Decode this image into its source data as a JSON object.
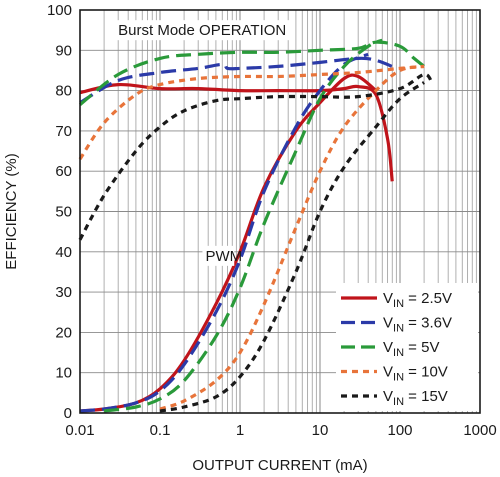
{
  "chart_data": {
    "type": "line",
    "title": "",
    "xlabel": "OUTPUT CURRENT (mA)",
    "ylabel": "EFFICIENCY (%)",
    "x_scale": "log",
    "xlim": [
      0.01,
      1000
    ],
    "ylim": [
      0,
      100
    ],
    "x_ticks": [
      0.01,
      0.1,
      1,
      10,
      100,
      1000
    ],
    "x_tick_labels": [
      "0.01",
      "0.1",
      "1",
      "10",
      "100",
      "1000"
    ],
    "y_ticks": [
      0,
      10,
      20,
      30,
      40,
      50,
      60,
      70,
      80,
      90,
      100
    ],
    "y_tick_labels": [
      "0",
      "10",
      "20",
      "30",
      "40",
      "50",
      "60",
      "70",
      "80",
      "90",
      "100"
    ],
    "grid": true,
    "legend_position": "bottom-right",
    "annotations": [
      {
        "text": "Burst Mode OPERATION",
        "x": 0.03,
        "y": 94
      },
      {
        "text": "PWM",
        "x": 0.37,
        "y": 38
      }
    ],
    "series": [
      {
        "name": "VIN = 2.5V",
        "name_main": "V",
        "name_sub": "IN",
        "name_rest": " = 2.5V",
        "color": "#c0141b",
        "dash": "solid",
        "segments": [
          {
            "mode": "Burst",
            "x": [
              0.01,
              0.03,
              0.1,
              0.3,
              1,
              3,
              10,
              20,
              30,
              50,
              70,
              80
            ],
            "y": [
              79.5,
              81.5,
              80.5,
              80.5,
              80.0,
              80.0,
              80.0,
              80.5,
              81.0,
              79.0,
              68.0,
              57.5
            ]
          },
          {
            "mode": "PWM",
            "x": [
              0.01,
              0.02,
              0.05,
              0.1,
              0.2,
              0.5,
              1,
              2,
              5,
              10,
              20,
              30,
              50
            ],
            "y": [
              0.5,
              1.0,
              2.5,
              6.0,
              13.0,
              27.0,
              40.0,
              56.0,
              70.0,
              77.0,
              83.0,
              83.5,
              80.0
            ]
          }
        ]
      },
      {
        "name": "VIN = 3.6V",
        "name_main": "V",
        "name_sub": "IN",
        "name_rest": " = 3.6V",
        "color": "#2b3aa8",
        "dash": "long",
        "segments": [
          {
            "mode": "Burst",
            "x": [
              0.01,
              0.03,
              0.1,
              0.3,
              0.6,
              0.7,
              1,
              3,
              10,
              30,
              50,
              80
            ],
            "y": [
              77.0,
              82.5,
              84.5,
              85.5,
              86.5,
              85.5,
              85.5,
              86.0,
              87.0,
              88.0,
              87.5,
              86.0
            ]
          },
          {
            "mode": "PWM",
            "x": [
              0.01,
              0.02,
              0.05,
              0.1,
              0.2,
              0.5,
              1,
              2,
              5,
              10,
              20,
              40
            ],
            "y": [
              0.5,
              1.0,
              2.5,
              5.5,
              12.0,
              25.0,
              38.0,
              55.0,
              71.0,
              80.0,
              86.5,
              89.0
            ]
          }
        ]
      },
      {
        "name": "VIN = 5V",
        "name_main": "V",
        "name_sub": "IN",
        "name_rest": " = 5V",
        "color": "#2a9a3a",
        "dash": "long",
        "segments": [
          {
            "mode": "Burst",
            "x": [
              0.01,
              0.03,
              0.1,
              0.3,
              1,
              3,
              10,
              30,
              50,
              100,
              150,
              200
            ],
            "y": [
              76.5,
              84.0,
              88.0,
              89.0,
              89.5,
              89.5,
              90.0,
              90.5,
              92.0,
              91.0,
              88.0,
              86.0
            ]
          },
          {
            "mode": "PWM",
            "x": [
              0.02,
              0.05,
              0.1,
              0.2,
              0.5,
              1,
              2,
              5,
              10,
              20,
              40,
              60
            ],
            "y": [
              0.5,
              1.5,
              3.5,
              8.0,
              19.0,
              31.0,
              47.0,
              65.0,
              78.0,
              86.0,
              91.0,
              92.5
            ]
          }
        ]
      },
      {
        "name": "VIN = 10V",
        "name_main": "V",
        "name_sub": "IN",
        "name_rest": " = 10V",
        "color": "#e8743a",
        "dash": "short",
        "segments": [
          {
            "mode": "Burst",
            "x": [
              0.01,
              0.02,
              0.05,
              0.1,
              0.3,
              1,
              3,
              10,
              30,
              100,
              200
            ],
            "y": [
              63.0,
              72.0,
              79.0,
              81.5,
              83.0,
              83.5,
              83.5,
              84.0,
              84.5,
              85.5,
              86.0
            ]
          },
          {
            "mode": "PWM",
            "x": [
              0.1,
              0.2,
              0.5,
              1,
              2,
              5,
              10,
              20,
              50,
              100,
              200
            ],
            "y": [
              1.0,
              3.0,
              8.0,
              15.0,
              27.0,
              46.0,
              60.0,
              71.0,
              80.0,
              85.0,
              86.0
            ]
          }
        ]
      },
      {
        "name": "VIN = 15V",
        "name_main": "V",
        "name_sub": "IN",
        "name_rest": " = 15V",
        "color": "#1a1a1a",
        "dash": "short",
        "segments": [
          {
            "mode": "Burst",
            "x": [
              0.01,
              0.02,
              0.05,
              0.1,
              0.2,
              0.5,
              1,
              3,
              10,
              30,
              100,
              200,
              250
            ],
            "y": [
              43.0,
              54.0,
              65.0,
              71.0,
              75.0,
              77.5,
              78.0,
              78.5,
              78.5,
              78.5,
              80.5,
              84.0,
              82.0
            ]
          },
          {
            "mode": "PWM",
            "x": [
              0.1,
              0.2,
              0.5,
              1,
              2,
              5,
              10,
              20,
              50,
              100,
              200
            ],
            "y": [
              0.5,
              1.5,
              4.0,
              9.0,
              18.0,
              35.0,
              50.0,
              61.0,
              71.0,
              78.0,
              82.0
            ]
          }
        ]
      }
    ]
  }
}
